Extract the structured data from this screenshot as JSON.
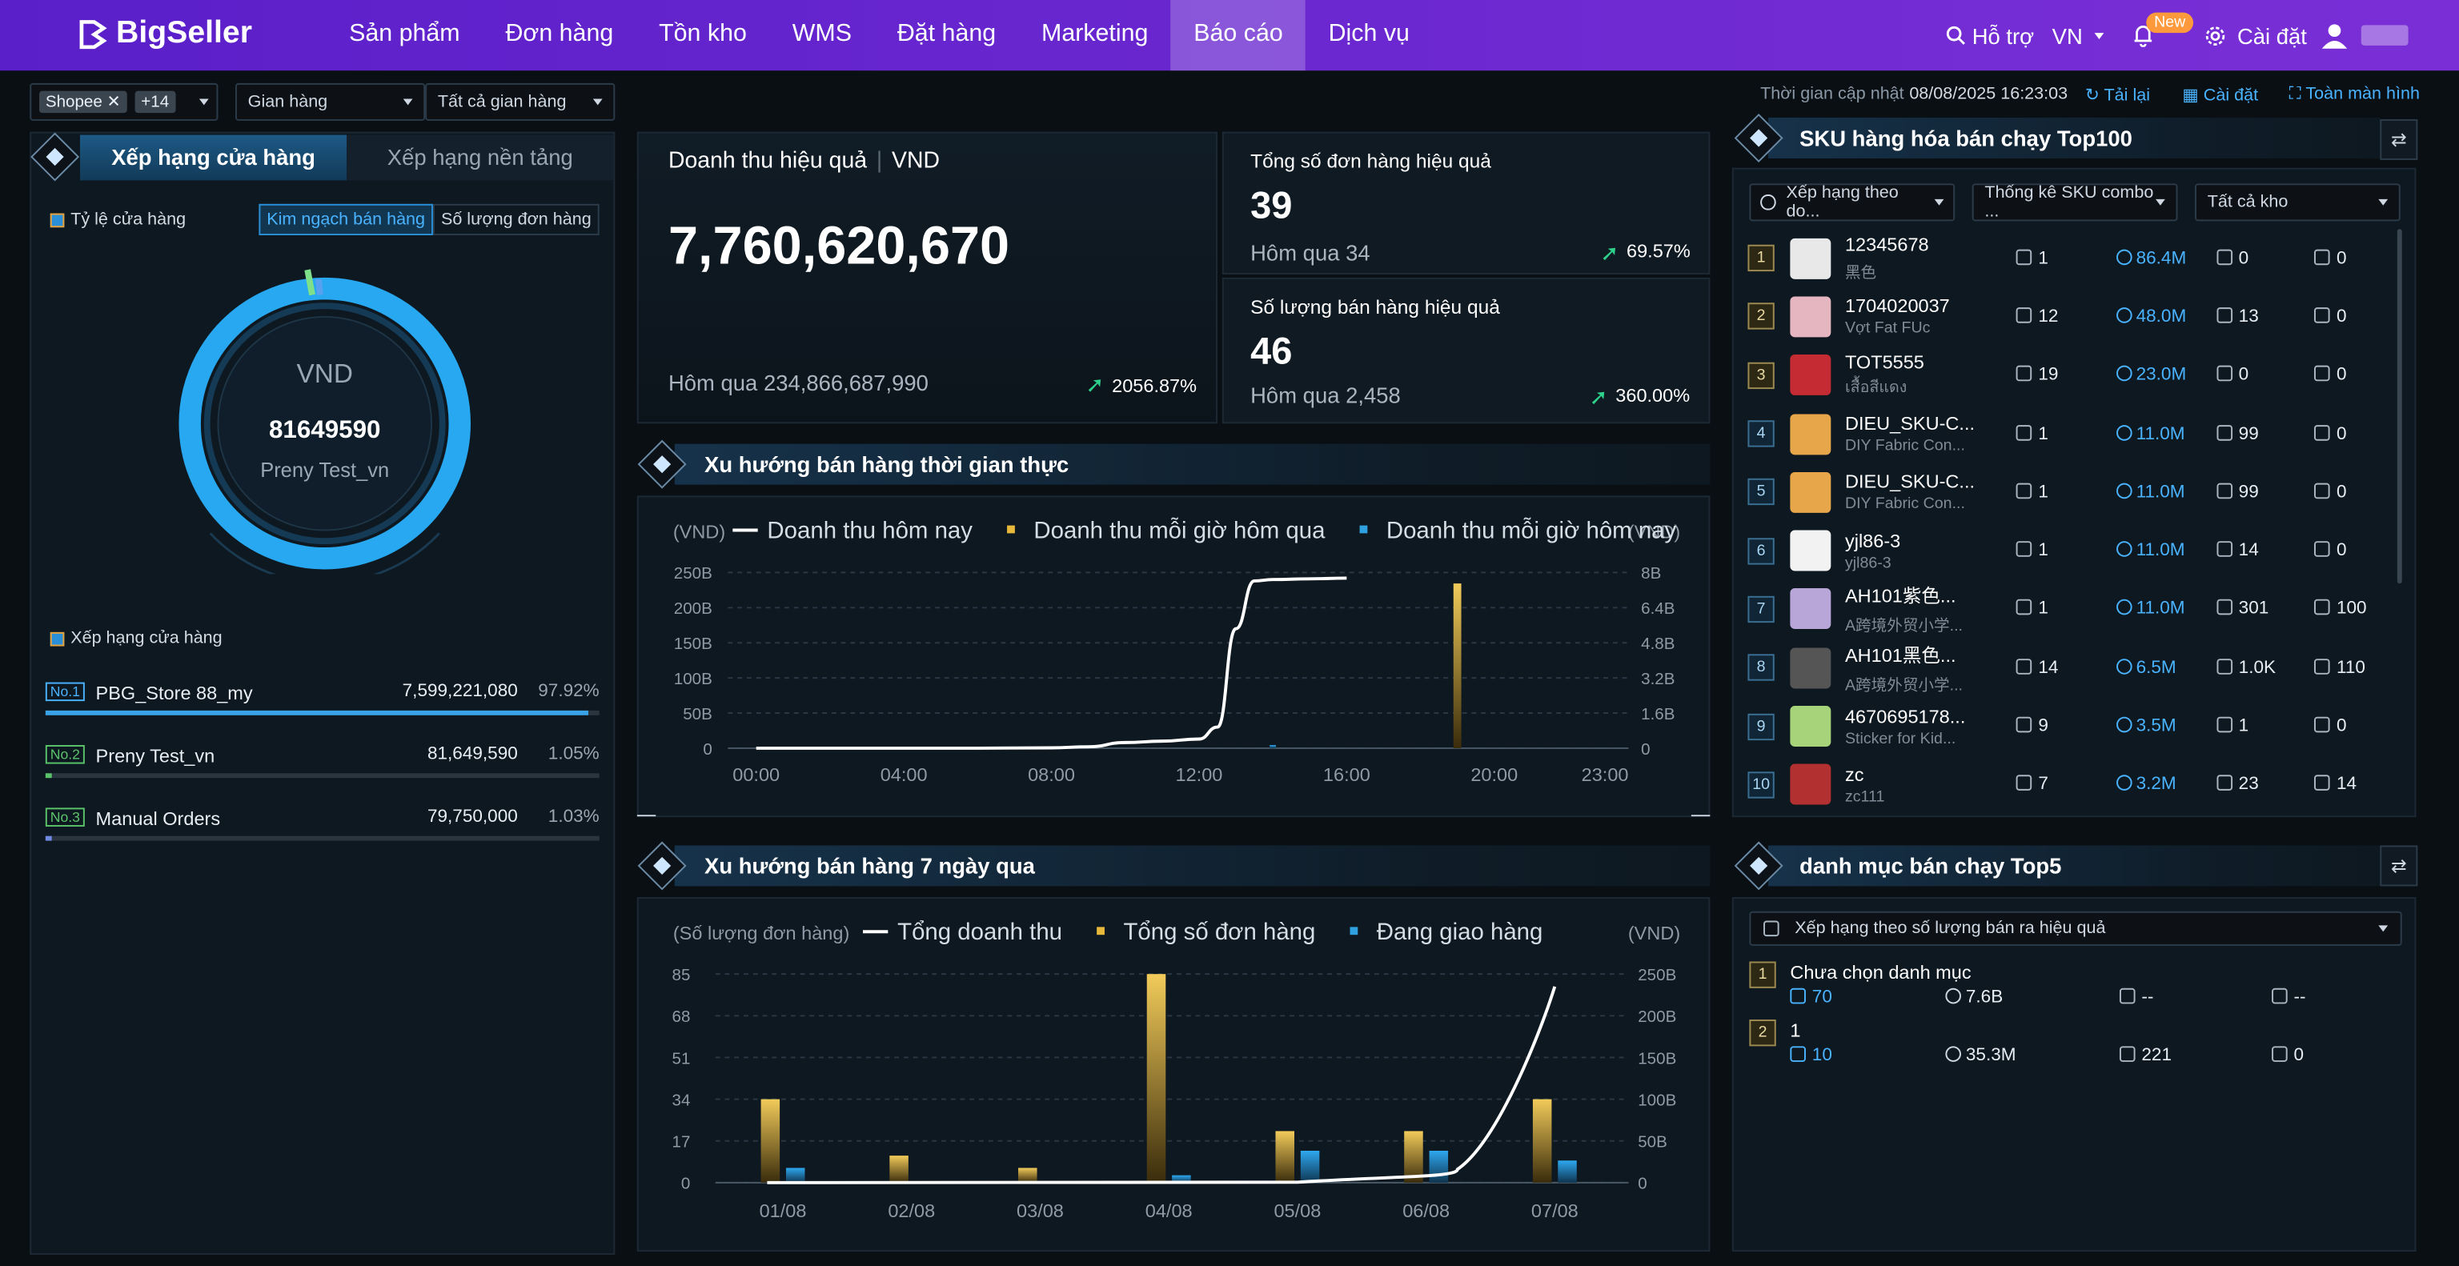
{
  "nav": {
    "logo": "BigSeller",
    "items": [
      "Sản phẩm",
      "Đơn hàng",
      "Tồn kho",
      "WMS",
      "Đặt hàng",
      "Marketing",
      "Báo cáo",
      "Dịch vụ"
    ],
    "active_index": 6,
    "support": "Hỗ trợ",
    "lang": "VN",
    "new_badge": "New",
    "settings": "Cài đặt"
  },
  "filters": {
    "platform": "Shopee",
    "more": "+14",
    "store_type": "Gian hàng",
    "store": "Tất cả gian hàng"
  },
  "update": {
    "label": "Thời gian cập nhật",
    "time": "08/08/2025 16:23:03",
    "reload": "Tải lại",
    "settings": "Cài đặt",
    "fullscreen": "Toàn màn hình"
  },
  "left": {
    "tab_store": "Xếp hạng cửa hàng",
    "tab_platform": "Xếp hạng nền tảng",
    "ratio_title": "Tỷ lệ cửa hàng",
    "toggle_amount": "Kim ngạch bán hàng",
    "toggle_orders": "Số lượng đơn hàng",
    "donut_currency": "VND",
    "donut_value": "81649590",
    "donut_store": "Preny Test_vn",
    "ranking_title": "Xếp hạng cửa hàng",
    "stores": [
      {
        "rank": "No.1",
        "name": "PBG_Store 88_my",
        "amount": "7,599,221,080",
        "pct": "97.92%",
        "share": 0.9792
      },
      {
        "rank": "No.2",
        "name": "Preny Test_vn",
        "amount": "81,649,590",
        "pct": "1.05%",
        "share": 0.0105
      },
      {
        "rank": "No.3",
        "name": "Manual Orders",
        "amount": "79,750,000",
        "pct": "1.03%",
        "share": 0.0103
      }
    ]
  },
  "kpi": {
    "revenue_title": "Doanh thu hiệu quả",
    "currency": "VND",
    "revenue": "7,760,620,670",
    "revenue_prev_label": "Hôm qua",
    "revenue_prev": "234,866,687,990",
    "revenue_change": "2056.87%",
    "orders_title": "Tổng số đơn hàng hiệu quả",
    "orders": "39",
    "orders_prev_label": "Hôm qua",
    "orders_prev": "34",
    "orders_change": "69.57%",
    "qty_title": "Số lượng bán hàng hiệu quả",
    "qty": "46",
    "qty_prev_label": "Hôm qua",
    "qty_prev": "2,458",
    "qty_change": "360.00%"
  },
  "realtime": {
    "title": "Xu hướng bán hàng thời gian thực"
  },
  "weekly": {
    "title": "Xu hướng bán hàng 7 ngày qua"
  },
  "sku": {
    "title": "SKU hàng hóa bán chạy Top100",
    "sort": "Xếp hạng theo do...",
    "stat": "Thống kê SKU combo ...",
    "warehouse": "Tất cả kho",
    "rows": [
      {
        "rank": "1",
        "sku": "12345678",
        "name": "黑色",
        "orders": "1",
        "amount": "86.4M",
        "stock": "0",
        "ship": "0",
        "thumb": "#e8e8e8"
      },
      {
        "rank": "2",
        "sku": "1704020037",
        "name": "Vợt Fat FUc",
        "orders": "12",
        "amount": "48.0M",
        "stock": "13",
        "ship": "0",
        "thumb": "#e6b6c0"
      },
      {
        "rank": "3",
        "sku": "TOT5555",
        "name": "เสื้อสีแดง",
        "orders": "19",
        "amount": "23.0M",
        "stock": "0",
        "ship": "0",
        "thumb": "#c42b33"
      },
      {
        "rank": "4",
        "sku": "DIEU_SKU-C...",
        "name": "DIY Fabric Con...",
        "orders": "1",
        "amount": "11.0M",
        "stock": "99",
        "ship": "0",
        "thumb": "#e7a64a"
      },
      {
        "rank": "5",
        "sku": "DIEU_SKU-C...",
        "name": "DIY Fabric Con...",
        "orders": "1",
        "amount": "11.0M",
        "stock": "99",
        "ship": "0",
        "thumb": "#e7a64a"
      },
      {
        "rank": "6",
        "sku": "yjl86-3",
        "name": "yjl86-3",
        "orders": "1",
        "amount": "11.0M",
        "stock": "14",
        "ship": "0",
        "thumb": "#f2f2f2"
      },
      {
        "rank": "7",
        "sku": "AH101紫色...",
        "name": "A跨境外贸小学...",
        "orders": "1",
        "amount": "11.0M",
        "stock": "301",
        "ship": "100",
        "thumb": "#b8a6d8"
      },
      {
        "rank": "8",
        "sku": "AH101黑色...",
        "name": "A跨境外贸小学...",
        "orders": "14",
        "amount": "6.5M",
        "stock": "1.0K",
        "ship": "110",
        "thumb": "#555"
      },
      {
        "rank": "9",
        "sku": "4670695178...",
        "name": "Sticker for Kid...",
        "orders": "9",
        "amount": "3.5M",
        "stock": "1",
        "ship": "0",
        "thumb": "#a7d37a"
      },
      {
        "rank": "10",
        "sku": "zc",
        "name": "zc111",
        "orders": "7",
        "amount": "3.2M",
        "stock": "23",
        "ship": "14",
        "thumb": "#b23030"
      }
    ]
  },
  "category": {
    "title": "danh mục bán chạy Top5",
    "sort": "Xếp hạng theo số lượng bán ra hiệu quả",
    "rows": [
      {
        "rank": "1",
        "name": "Chưa chọn danh mục",
        "orders": "70",
        "amount": "7.6B",
        "stock": "--",
        "ship": "--"
      },
      {
        "rank": "2",
        "name": "1",
        "orders": "10",
        "amount": "35.3M",
        "stock": "221",
        "ship": "0"
      }
    ]
  },
  "chart_data": [
    {
      "type": "line",
      "title": "Xu hướng bán hàng thời gian thực",
      "ylabel_left": "(VND)",
      "ylabel_right": "(VND)",
      "legend": [
        "Doanh thu hôm nay",
        "Doanh thu mỗi giờ hôm qua",
        "Doanh thu mỗi giờ hôm nay"
      ],
      "x_ticks": [
        "00:00",
        "04:00",
        "08:00",
        "12:00",
        "16:00",
        "20:00",
        "23:00"
      ],
      "y_left_ticks": [
        "250B",
        "200B",
        "150B",
        "100B",
        "50B",
        "0"
      ],
      "y_right_ticks": [
        "8B",
        "6.4B",
        "4.8B",
        "3.2B",
        "1.6B",
        "0"
      ],
      "ylim_left": [
        0,
        250
      ],
      "ylim_right": [
        0,
        8
      ],
      "series": [
        {
          "name": "Doanh thu hôm nay",
          "unit": "B VND",
          "x": [
            0,
            2,
            4,
            6,
            8,
            9,
            10,
            11,
            12,
            12.5,
            13,
            13.5,
            14,
            15,
            16
          ],
          "values": [
            0,
            0,
            0,
            0,
            0.5,
            2,
            8,
            10,
            13,
            30,
            170,
            238,
            240,
            241,
            242
          ]
        },
        {
          "name": "Doanh thu mỗi giờ hôm qua",
          "unit": "B VND",
          "x": [
            19
          ],
          "values": [
            7.5
          ]
        },
        {
          "name": "Doanh thu mỗi giờ hôm nay",
          "unit": "B VND",
          "x": [
            14
          ],
          "values": [
            0.08
          ]
        }
      ]
    },
    {
      "type": "bar",
      "title": "Xu hướng bán hàng 7 ngày qua",
      "ylabel_left": "(Số lượng đơn hàng)",
      "ylabel_right": "(VND)",
      "legend": [
        "Tổng doanh thu",
        "Tổng số đơn hàng",
        "Đang giao hàng"
      ],
      "categories": [
        "01/08",
        "02/08",
        "03/08",
        "04/08",
        "05/08",
        "06/08",
        "07/08"
      ],
      "y_left_ticks": [
        "85",
        "68",
        "51",
        "34",
        "17",
        "0"
      ],
      "y_right_ticks": [
        "250B",
        "200B",
        "150B",
        "100B",
        "50B",
        "0"
      ],
      "ylim_left": [
        0,
        85
      ],
      "ylim_right": [
        0,
        250
      ],
      "series": [
        {
          "name": "Tổng số đơn hàng",
          "values": [
            34,
            11,
            6,
            85,
            21,
            21,
            34
          ]
        },
        {
          "name": "Đang giao hàng",
          "values": [
            6,
            0,
            0,
            3,
            13,
            13,
            9
          ]
        },
        {
          "name": "Tổng doanh thu",
          "unit": "B VND",
          "values": [
            0,
            0,
            0,
            0,
            0.5,
            8,
            235
          ]
        }
      ]
    }
  ]
}
